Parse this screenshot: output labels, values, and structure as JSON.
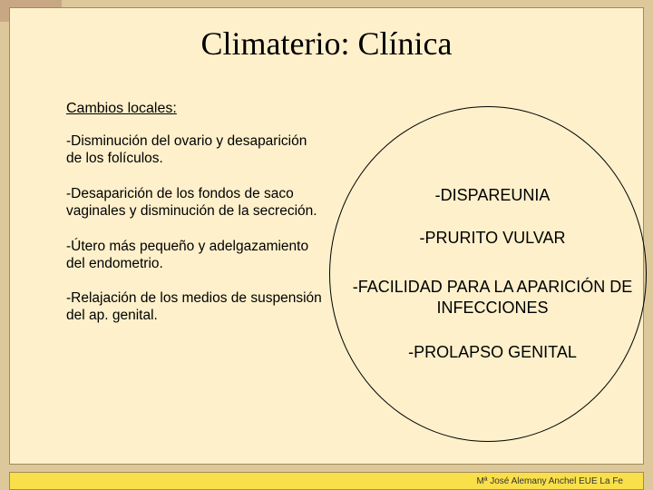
{
  "slide": {
    "title": "Climaterio: Clínica",
    "subtitle": "Cambios locales:",
    "bg_color": "#fdf0cb",
    "border_color": "#a08b5a",
    "outer_bg": "#dcc89a",
    "corner_patch_color": "#c8a884"
  },
  "left_items": {
    "p1": "-Disminución del ovario y desaparición de los folículos.",
    "p2": "-Desaparición de los fondos de saco vaginales y disminución de la secreción.",
    "p3": "-Útero más pequeño y adelgazamiento del endometrio.",
    "p4": "-Relajación de los medios de suspensión del ap. genital."
  },
  "symptoms": {
    "s1": "-DISPAREUNIA",
    "s2": "-PRURITO VULVAR",
    "s3": "-FACILIDAD PARA LA APARICIÓN DE INFECCIONES",
    "s4": "-PROLAPSO GENITAL"
  },
  "ellipse": {
    "border_color": "#000000"
  },
  "footer": {
    "text": "Mª José Alemany Anchel  EUE La Fe",
    "bg_color": "#f9e04a"
  },
  "typography": {
    "title_font": "Times New Roman",
    "title_size_pt": 27,
    "body_font": "Verdana",
    "body_size_pt": 12,
    "symptom_size_pt": 14,
    "footer_size_pt": 8
  }
}
